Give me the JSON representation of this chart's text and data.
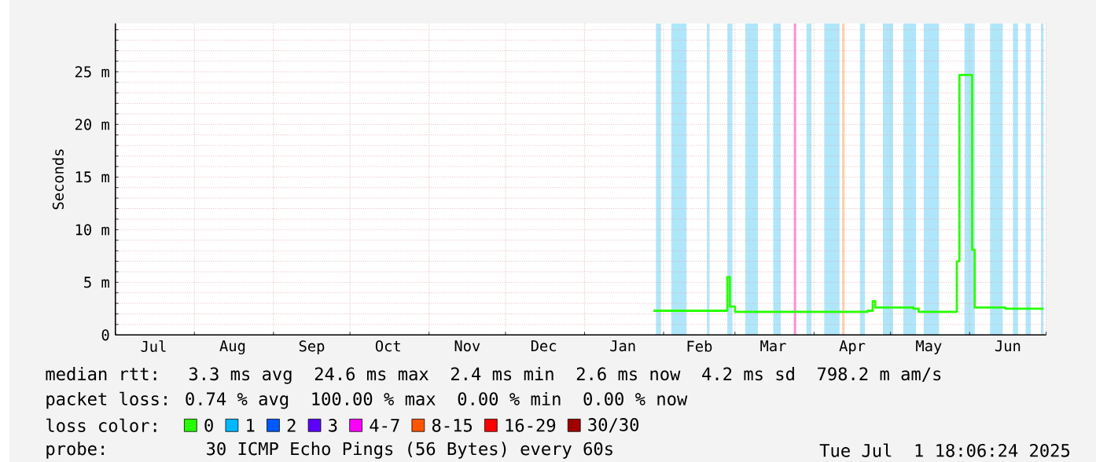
{
  "chart_data": {
    "type": "step",
    "ylabel": "Seconds",
    "legend_title": "loss color:",
    "legend": "bottom",
    "grid": true,
    "xlim": [
      "2024-07-01",
      "2025-07-01"
    ],
    "xticks": [
      {
        "value": "2024-07-01",
        "label": null
      },
      {
        "value": "2024-08-01",
        "label": null
      },
      {
        "value": "2024-09-01",
        "label": null
      },
      {
        "value": "2024-10-01",
        "label": null
      },
      {
        "value": "2024-11-01",
        "label": null
      },
      {
        "value": "2024-12-01",
        "label": null
      },
      {
        "value": "2025-01-01",
        "label": null
      },
      {
        "value": "2025-02-01",
        "label": null
      },
      {
        "value": "2025-03-01",
        "label": null
      },
      {
        "value": "2025-04-01",
        "label": null
      },
      {
        "value": "2025-05-01",
        "label": null
      },
      {
        "value": "2025-06-01",
        "label": null
      },
      {
        "value": "2025-07-01",
        "label": null
      },
      {
        "value": "2024-07-16",
        "label": "Jul"
      },
      {
        "value": "2024-08-16",
        "label": "Aug"
      },
      {
        "value": "2024-09-16",
        "label": "Sep"
      },
      {
        "value": "2024-10-16",
        "label": "Oct"
      },
      {
        "value": "2024-11-16",
        "label": "Nov"
      },
      {
        "value": "2024-12-16",
        "label": "Dec"
      },
      {
        "value": "2025-01-16",
        "label": "Jan"
      },
      {
        "value": "2025-02-15",
        "label": "Feb"
      },
      {
        "value": "2025-03-16",
        "label": "Mar"
      },
      {
        "value": "2025-04-16",
        "label": "Apr"
      },
      {
        "value": "2025-05-16",
        "label": "May"
      },
      {
        "value": "2025-06-16",
        "label": "Jun"
      }
    ],
    "ylim": [
      0,
      29.6
    ],
    "yticks": [
      0,
      {
        "value": 5,
        "label": "5 m"
      },
      {
        "value": 10,
        "label": "10 m"
      },
      {
        "value": 15,
        "label": "15 m"
      },
      {
        "value": 20,
        "label": "20 m"
      },
      {
        "value": 25,
        "label": "25 m"
      },
      {
        "value": 1,
        "label": null
      },
      {
        "value": 2,
        "label": null
      },
      {
        "value": 3,
        "label": null
      },
      {
        "value": 4,
        "label": null
      },
      {
        "value": 6,
        "label": null
      },
      {
        "value": 7,
        "label": null
      },
      {
        "value": 8,
        "label": null
      },
      {
        "value": 9,
        "label": null
      },
      {
        "value": 11,
        "label": null
      },
      {
        "value": 12,
        "label": null
      },
      {
        "value": 13,
        "label": null
      },
      {
        "value": 14,
        "label": null
      },
      {
        "value": 16,
        "label": null
      },
      {
        "value": 17,
        "label": null
      },
      {
        "value": 18,
        "label": null
      },
      {
        "value": 19,
        "label": null
      },
      {
        "value": 21,
        "label": null
      },
      {
        "value": 22,
        "label": null
      },
      {
        "value": 23,
        "label": null
      },
      {
        "value": 24,
        "label": null
      },
      {
        "value": 26,
        "label": null
      },
      {
        "value": 27,
        "label": null
      },
      {
        "value": 28,
        "label": null
      },
      {
        "value": 29,
        "label": null
      }
    ],
    "x": [
      "2025-01-28",
      "2025-02-10",
      "2025-02-25",
      "2025-02-26",
      "2025-02-27",
      "2025-03-01",
      "2025-04-22",
      "2025-04-24",
      "2025-04-25",
      "2025-05-10",
      "2025-05-12",
      "2025-05-26",
      "2025-05-27",
      "2025-05-28",
      "2025-06-02",
      "2025-06-03",
      "2025-06-15",
      "2025-06-30"
    ],
    "series": [
      {
        "name": "0",
        "color": "#26ff00",
        "values": [
          2.3,
          2.3,
          2.3,
          5.5,
          2.7,
          2.2,
          2.3,
          3.2,
          2.6,
          2.5,
          2.2,
          2.2,
          7.0,
          24.7,
          8.1,
          2.6,
          2.5,
          2.5
        ]
      },
      {
        "name": "1",
        "color": "#00b8ff",
        "values": [
          null,
          null,
          null,
          null,
          null,
          null,
          null,
          null,
          null,
          null,
          null,
          null,
          null,
          null,
          null,
          null,
          null,
          null
        ]
      },
      {
        "name": "2",
        "color": "#0059ff",
        "values": [
          null,
          null,
          null,
          null,
          null,
          null,
          null,
          null,
          null,
          null,
          null,
          null,
          null,
          null,
          null,
          null,
          null,
          null
        ]
      },
      {
        "name": "3",
        "color": "#5e00ff",
        "values": [
          null,
          null,
          null,
          null,
          null,
          null,
          null,
          null,
          null,
          null,
          null,
          null,
          null,
          null,
          null,
          null,
          null,
          null
        ]
      },
      {
        "name": "4-7",
        "color": "#ff00ff",
        "values": [
          null,
          null,
          null,
          null,
          null,
          null,
          null,
          null,
          null,
          null,
          null,
          null,
          null,
          null,
          null,
          null,
          null,
          null
        ]
      },
      {
        "name": "8-15",
        "color": "#ff5500",
        "values": [
          null,
          null,
          null,
          null,
          null,
          null,
          null,
          null,
          null,
          null,
          null,
          null,
          null,
          null,
          null,
          null,
          null,
          null
        ]
      },
      {
        "name": "16-29",
        "color": "#ff0000",
        "values": [
          null,
          null,
          null,
          null,
          null,
          null,
          null,
          null,
          null,
          null,
          null,
          null,
          null,
          null,
          null,
          null,
          null,
          null
        ]
      },
      {
        "name": "30/30",
        "color": "#a10000",
        "values": [
          null,
          null,
          null,
          null,
          null,
          null,
          null,
          null,
          null,
          null,
          null,
          null,
          null,
          null,
          null,
          null,
          null,
          null
        ]
      }
    ],
    "bands": [
      {
        "axis": "x",
        "from": "2025-01-29",
        "to": "2025-01-31",
        "color": "#b0e6fa"
      },
      {
        "axis": "x",
        "from": "2025-02-04",
        "to": "2025-02-10",
        "color": "#b0e6fa"
      },
      {
        "axis": "x",
        "from": "2025-02-18",
        "to": "2025-02-19",
        "color": "#b0e6fa"
      },
      {
        "axis": "x",
        "from": "2025-02-26",
        "to": "2025-02-28",
        "color": "#b0e6fa"
      },
      {
        "axis": "x",
        "from": "2025-03-05",
        "to": "2025-03-10",
        "color": "#b0e6fa"
      },
      {
        "axis": "x",
        "from": "2025-03-16",
        "to": "2025-03-19",
        "color": "#b0e6fa"
      },
      {
        "axis": "x",
        "from": "2025-03-24",
        "to": "2025-03-25",
        "color": "#ff90d8"
      },
      {
        "axis": "x",
        "from": "2025-03-29",
        "to": "2025-03-31",
        "color": "#b0e6fa"
      },
      {
        "axis": "x",
        "from": "2025-04-05",
        "to": "2025-04-11",
        "color": "#b0e6fa"
      },
      {
        "axis": "x",
        "from": "2025-04-12",
        "to": "2025-04-13",
        "color": "#ffd0b0"
      },
      {
        "axis": "x",
        "from": "2025-04-19",
        "to": "2025-04-21",
        "color": "#b0e6fa"
      },
      {
        "axis": "x",
        "from": "2025-04-28",
        "to": "2025-05-02",
        "color": "#b0e6fa"
      },
      {
        "axis": "x",
        "from": "2025-05-06",
        "to": "2025-05-11",
        "color": "#b0e6fa"
      },
      {
        "axis": "x",
        "from": "2025-05-14",
        "to": "2025-05-20",
        "color": "#b0e6fa"
      },
      {
        "axis": "x",
        "from": "2025-05-30",
        "to": "2025-06-03",
        "color": "#b0e6fa"
      },
      {
        "axis": "x",
        "from": "2025-06-09",
        "to": "2025-06-14",
        "color": "#b0e6fa"
      },
      {
        "axis": "x",
        "from": "2025-06-18",
        "to": "2025-06-20",
        "color": "#b0e6fa"
      },
      {
        "axis": "x",
        "from": "2025-06-23",
        "to": "2025-06-25",
        "color": "#b0e6fa"
      },
      {
        "axis": "x",
        "from": "2025-06-29",
        "to": "2025-06-30",
        "color": "#b0e6fa"
      }
    ],
    "annotations": [
      "median rtt:  3.3 ms avg  24.6 ms max  2.4 ms min  2.6 ms now  4.2 ms sd  798.2 m am/s",
      "packet loss: 0.74 % avg  100.00 % max  0.00 % min  0.00 % now",
      "probe:       30 ICMP Echo Pings (56 Bytes) every 60s",
      "Tue Jul  1 18:06:24 2025"
    ]
  }
}
